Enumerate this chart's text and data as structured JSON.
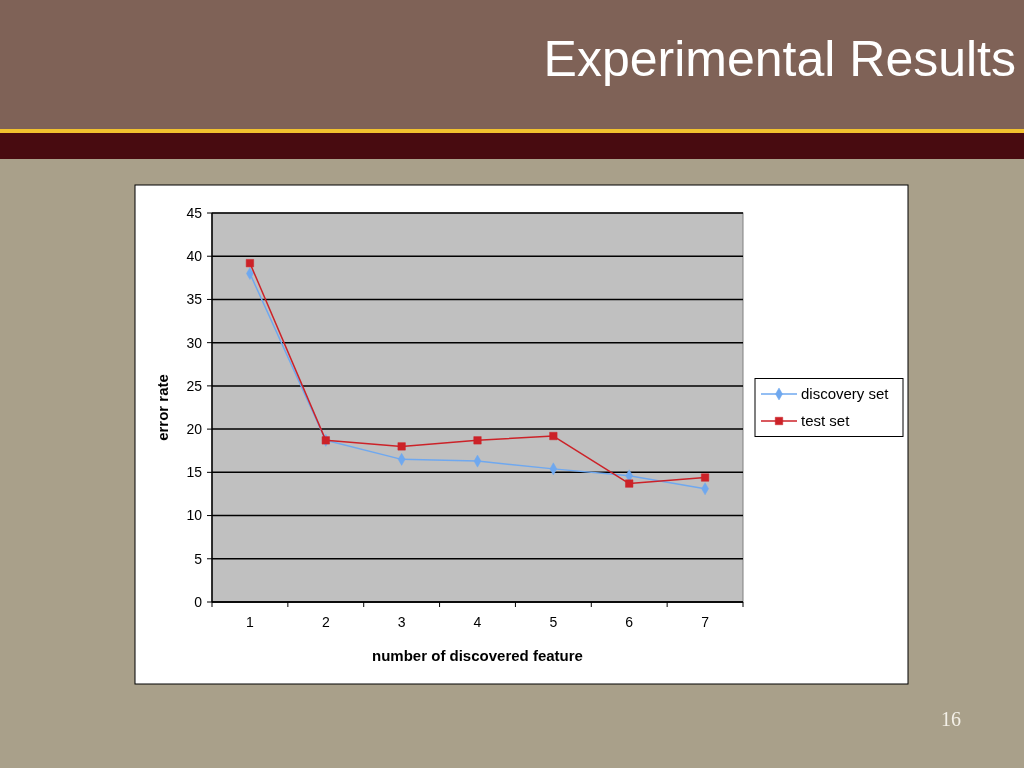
{
  "chart_data": {
    "type": "line",
    "title": "Experimental Results",
    "xlabel": "number of discovered feature",
    "ylabel": "error rate",
    "categories": [
      "1",
      "2",
      "3",
      "4",
      "5",
      "6",
      "7"
    ],
    "series": [
      {
        "name": "discovery set",
        "color": "#6fa8ef",
        "marker": "diamond",
        "values": [
          38.0,
          18.7,
          16.5,
          16.3,
          15.4,
          14.6,
          13.1
        ]
      },
      {
        "name": "test set",
        "color": "#cc2228",
        "marker": "square",
        "values": [
          39.2,
          18.7,
          18.0,
          18.7,
          19.2,
          13.7,
          14.4
        ]
      }
    ],
    "ylim": [
      0,
      45
    ],
    "yticks": [
      0,
      5,
      10,
      15,
      20,
      25,
      30,
      35,
      40,
      45
    ],
    "grid": "y",
    "legend": "right",
    "line_style": "solid",
    "annotations": [
      "16"
    ]
  }
}
